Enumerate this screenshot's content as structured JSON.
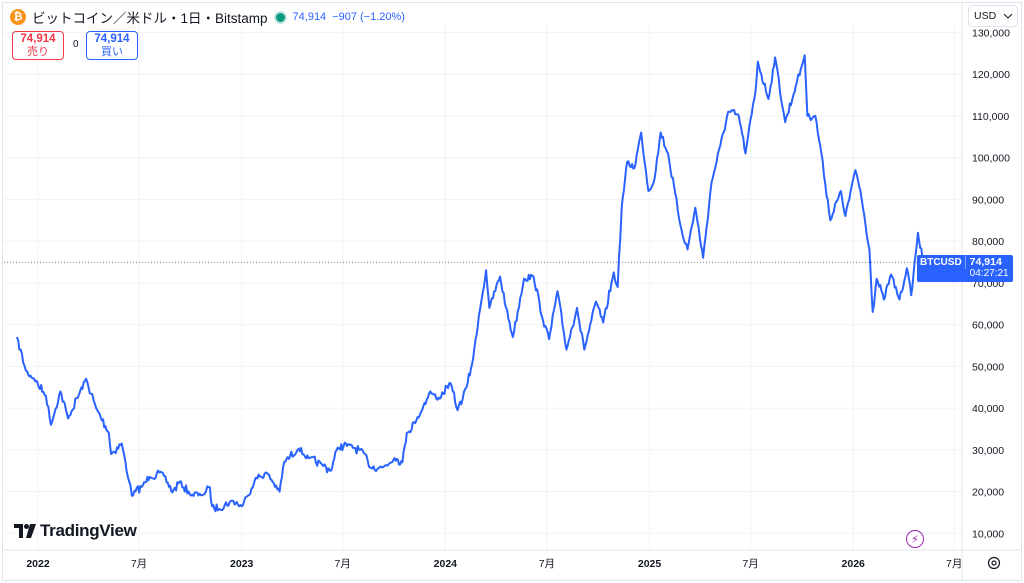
{
  "header": {
    "coin_icon": "bitcoin-icon",
    "title": "ビットコイン／米ドル・1日・Bitstamp",
    "status_color": "#089981",
    "price": "74,914",
    "change": "−907 (−1.20%)"
  },
  "trade": {
    "sell_price": "74,914",
    "sell_label": "売り",
    "spread": "0",
    "buy_price": "74,914",
    "buy_label": "買い"
  },
  "currency_selector": {
    "value": "USD",
    "icon": "chevron-down-icon"
  },
  "price_tag": {
    "symbol": "BTCUSD",
    "price": "74,914",
    "countdown": "04:27:21"
  },
  "logo": {
    "text": "TradingView"
  },
  "colors": {
    "line": "#2962ff",
    "sell": "#f23645",
    "buy": "#2962ff",
    "grid": "#f0f3fa"
  },
  "chart_data": {
    "type": "line",
    "series": [
      {
        "x": [
          "2021-11-24",
          "2021-12-10",
          "2021-12-25",
          "2022-01-15",
          "2022-01-24",
          "2022-02-10",
          "2022-02-24",
          "2022-03-28",
          "2022-04-15",
          "2022-05-08",
          "2022-05-12",
          "2022-05-31",
          "2022-06-13",
          "2022-06-18",
          "2022-07-08",
          "2022-07-20",
          "2022-08-13",
          "2022-08-30",
          "2022-09-12",
          "2022-09-30",
          "2022-10-20",
          "2022-11-05",
          "2022-11-09",
          "2022-11-21",
          "2022-12-15",
          "2023-01-01",
          "2023-01-12",
          "2023-01-25",
          "2023-02-15",
          "2023-03-10",
          "2023-03-18",
          "2023-04-13",
          "2023-05-01",
          "2023-05-25",
          "2023-06-10",
          "2023-06-22",
          "2023-07-13",
          "2023-08-10",
          "2023-08-17",
          "2023-09-11",
          "2023-10-02",
          "2023-10-16",
          "2023-10-24",
          "2023-11-10",
          "2023-12-05",
          "2023-12-18",
          "2024-01-10",
          "2024-01-23",
          "2024-02-08",
          "2024-02-20",
          "2024-03-01",
          "2024-03-06",
          "2024-03-14",
          "2024-03-20",
          "2024-04-08",
          "2024-04-19",
          "2024-05-01",
          "2024-05-21",
          "2024-06-07",
          "2024-06-24",
          "2024-07-05",
          "2024-07-20",
          "2024-08-05",
          "2024-08-24",
          "2024-09-06",
          "2024-09-27",
          "2024-10-10",
          "2024-10-29",
          "2024-11-05",
          "2024-11-12",
          "2024-11-22",
          "2024-12-05",
          "2024-12-17",
          "2024-12-30",
          "2025-01-10",
          "2025-01-21",
          "2025-02-03",
          "2025-02-25",
          "2025-03-10",
          "2025-03-24",
          "2025-04-07",
          "2025-04-22",
          "2025-05-08",
          "2025-05-22",
          "2025-06-10",
          "2025-06-22",
          "2025-07-10",
          "2025-07-14",
          "2025-08-02",
          "2025-08-14",
          "2025-09-01",
          "2025-09-20",
          "2025-10-06",
          "2025-10-11",
          "2025-10-25",
          "2025-11-05",
          "2025-11-21",
          "2025-12-10",
          "2025-12-18",
          "2026-01-05",
          "2026-01-14",
          "2026-01-30",
          "2026-02-05",
          "2026-02-12",
          "2026-02-25",
          "2026-03-10",
          "2026-03-25",
          "2026-04-07",
          "2026-04-15",
          "2026-04-27",
          "2026-05-05",
          "2026-05-10"
        ],
        "y": [
          57000,
          49000,
          47000,
          43000,
          36000,
          44000,
          37500,
          47000,
          40000,
          34000,
          29000,
          31500,
          22500,
          19000,
          21500,
          23500,
          24400,
          19800,
          22400,
          19400,
          19100,
          21000,
          16500,
          15800,
          17800,
          16500,
          19000,
          23000,
          24500,
          20000,
          27000,
          30300,
          28000,
          26500,
          25000,
          30500,
          31200,
          29000,
          26000,
          25800,
          28000,
          27000,
          34000,
          37000,
          44000,
          42000,
          46000,
          39500,
          45000,
          52000,
          62000,
          66000,
          73000,
          64000,
          71500,
          64000,
          57000,
          71000,
          71500,
          61000,
          56500,
          68000,
          54000,
          64000,
          54000,
          65500,
          60500,
          72500,
          69000,
          88000,
          99000,
          97500,
          106000,
          92000,
          95000,
          106000,
          101000,
          84000,
          78000,
          88000,
          76000,
          94000,
          103000,
          111000,
          110000,
          101000,
          116000,
          123000,
          114000,
          124000,
          108500,
          117000,
          124500,
          110000,
          110000,
          101000,
          85000,
          92000,
          86000,
          97000,
          92000,
          78000,
          63000,
          71000,
          66000,
          72000,
          66000,
          73500,
          67000,
          82000,
          76000,
          74914
        ]
      }
    ],
    "ylim": [
      6000,
      132000
    ],
    "y_ticks": [
      "130,000",
      "120,000",
      "110,000",
      "100,000",
      "90,000",
      "80,000",
      "70,000",
      "60,000",
      "50,000",
      "40,000",
      "30,000",
      "20,000",
      "10,000"
    ],
    "x_ticks": [
      "2022",
      "7月",
      "2023",
      "7月",
      "2024",
      "7月",
      "2025",
      "7月",
      "2026",
      "7月"
    ],
    "last_price": 74914,
    "grid": true
  }
}
